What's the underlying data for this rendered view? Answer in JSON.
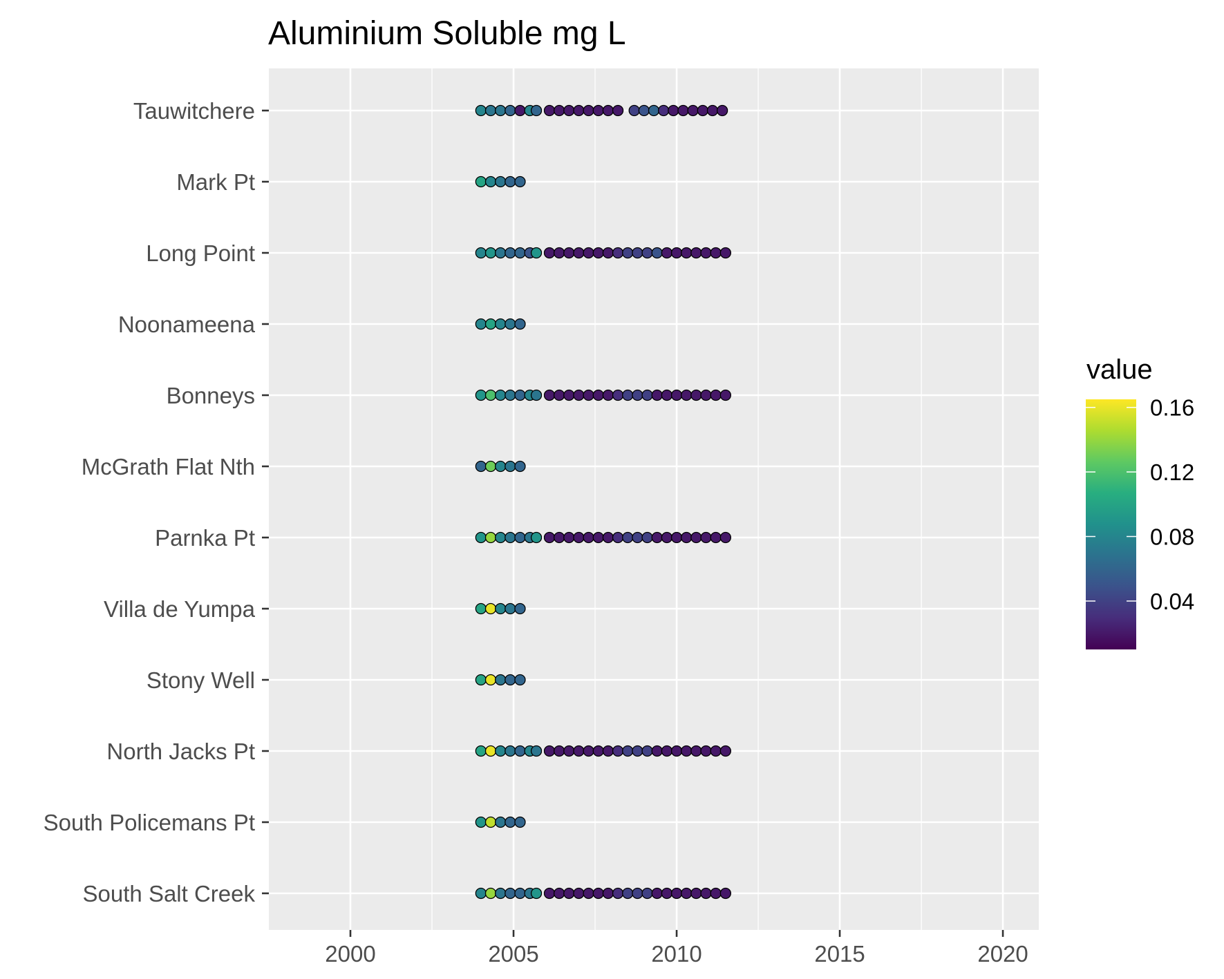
{
  "chart_data": {
    "type": "scatter",
    "title": "Aluminium Soluble mg L",
    "xlabel": "",
    "ylabel": "",
    "xlim": [
      1997.5,
      2021.1
    ],
    "x_ticks": [
      2000,
      2005,
      2010,
      2015,
      2020
    ],
    "grid": true,
    "legend": {
      "title": "value",
      "position": "right",
      "breaks": [
        0.04,
        0.08,
        0.12,
        0.16
      ],
      "range": [
        0.01,
        0.165
      ],
      "colormap": "viridis"
    },
    "sites": [
      "Tauwitchere",
      "Mark Pt",
      "Long Point",
      "Noonameena",
      "Bonneys",
      "McGrath Flat Nth",
      "Parnka Pt",
      "Villa de Yumpa",
      "Stony Well",
      "North Jacks Pt",
      "South Policemans Pt",
      "South Salt Creek"
    ],
    "series": [
      {
        "site": "Tauwitchere",
        "x": [
          2004.0,
          2004.3,
          2004.6,
          2004.9,
          2005.2,
          2005.5,
          2005.7,
          2006.1,
          2006.4,
          2006.7,
          2007.0,
          2007.3,
          2007.6,
          2007.9,
          2008.2,
          2008.7,
          2009.0,
          2009.3,
          2009.6,
          2009.9,
          2010.2,
          2010.5,
          2010.8,
          2011.1,
          2011.4
        ],
        "values": [
          0.08,
          0.07,
          0.07,
          0.06,
          0.02,
          0.08,
          0.06,
          0.02,
          0.02,
          0.02,
          0.02,
          0.02,
          0.02,
          0.02,
          0.02,
          0.04,
          0.05,
          0.06,
          0.03,
          0.02,
          0.02,
          0.02,
          0.02,
          0.02,
          0.02
        ]
      },
      {
        "site": "Mark Pt",
        "x": [
          2004.0,
          2004.3,
          2004.6,
          2004.9,
          2005.2
        ],
        "values": [
          0.1,
          0.08,
          0.07,
          0.06,
          0.06
        ]
      },
      {
        "site": "Long Point",
        "x": [
          2004.0,
          2004.3,
          2004.6,
          2004.9,
          2005.2,
          2005.5,
          2005.7,
          2006.1,
          2006.4,
          2006.7,
          2007.0,
          2007.3,
          2007.6,
          2007.9,
          2008.2,
          2008.5,
          2008.8,
          2009.1,
          2009.4,
          2009.7,
          2010.0,
          2010.3,
          2010.6,
          2010.9,
          2011.2,
          2011.5
        ],
        "values": [
          0.08,
          0.09,
          0.07,
          0.06,
          0.06,
          0.05,
          0.09,
          0.02,
          0.02,
          0.02,
          0.02,
          0.02,
          0.02,
          0.02,
          0.03,
          0.04,
          0.04,
          0.04,
          0.05,
          0.02,
          0.02,
          0.02,
          0.02,
          0.02,
          0.02,
          0.02
        ]
      },
      {
        "site": "Noonameena",
        "x": [
          2004.0,
          2004.3,
          2004.6,
          2004.9,
          2005.2
        ],
        "values": [
          0.08,
          0.1,
          0.08,
          0.07,
          0.06
        ]
      },
      {
        "site": "Bonneys",
        "x": [
          2004.0,
          2004.3,
          2004.6,
          2004.9,
          2005.2,
          2005.5,
          2005.7,
          2006.1,
          2006.4,
          2006.7,
          2007.0,
          2007.3,
          2007.6,
          2007.9,
          2008.2,
          2008.5,
          2008.8,
          2009.1,
          2009.4,
          2009.7,
          2010.0,
          2010.3,
          2010.6,
          2010.9,
          2011.2,
          2011.5
        ],
        "values": [
          0.09,
          0.12,
          0.08,
          0.07,
          0.06,
          0.08,
          0.07,
          0.02,
          0.02,
          0.02,
          0.02,
          0.02,
          0.02,
          0.02,
          0.03,
          0.04,
          0.04,
          0.04,
          0.02,
          0.02,
          0.02,
          0.02,
          0.02,
          0.02,
          0.02,
          0.02
        ]
      },
      {
        "site": "McGrath Flat Nth",
        "x": [
          2004.0,
          2004.3,
          2004.6,
          2004.9,
          2005.2
        ],
        "values": [
          0.06,
          0.13,
          0.08,
          0.07,
          0.06
        ]
      },
      {
        "site": "Parnka Pt",
        "x": [
          2004.0,
          2004.3,
          2004.6,
          2004.9,
          2005.2,
          2005.5,
          2005.7,
          2006.1,
          2006.4,
          2006.7,
          2007.0,
          2007.3,
          2007.6,
          2007.9,
          2008.2,
          2008.5,
          2008.8,
          2009.1,
          2009.4,
          2009.7,
          2010.0,
          2010.3,
          2010.6,
          2010.9,
          2011.2,
          2011.5
        ],
        "values": [
          0.09,
          0.14,
          0.08,
          0.07,
          0.06,
          0.07,
          0.09,
          0.02,
          0.02,
          0.02,
          0.02,
          0.02,
          0.02,
          0.02,
          0.03,
          0.04,
          0.04,
          0.04,
          0.02,
          0.02,
          0.02,
          0.02,
          0.02,
          0.02,
          0.02,
          0.02
        ]
      },
      {
        "site": "Villa de Yumpa",
        "x": [
          2004.0,
          2004.3,
          2004.6,
          2004.9,
          2005.2
        ],
        "values": [
          0.1,
          0.16,
          0.08,
          0.07,
          0.06
        ]
      },
      {
        "site": "Stony Well",
        "x": [
          2004.0,
          2004.3,
          2004.6,
          2004.9,
          2005.2
        ],
        "values": [
          0.1,
          0.16,
          0.07,
          0.06,
          0.06
        ]
      },
      {
        "site": "North Jacks Pt",
        "x": [
          2004.0,
          2004.3,
          2004.6,
          2004.9,
          2005.2,
          2005.5,
          2005.7,
          2006.1,
          2006.4,
          2006.7,
          2007.0,
          2007.3,
          2007.6,
          2007.9,
          2008.2,
          2008.5,
          2008.8,
          2009.1,
          2009.4,
          2009.7,
          2010.0,
          2010.3,
          2010.6,
          2010.9,
          2011.2,
          2011.5
        ],
        "values": [
          0.1,
          0.16,
          0.08,
          0.07,
          0.06,
          0.08,
          0.07,
          0.02,
          0.02,
          0.02,
          0.02,
          0.02,
          0.02,
          0.02,
          0.03,
          0.04,
          0.04,
          0.04,
          0.02,
          0.02,
          0.02,
          0.02,
          0.02,
          0.02,
          0.02,
          0.02
        ]
      },
      {
        "site": "South Policemans Pt",
        "x": [
          2004.0,
          2004.3,
          2004.6,
          2004.9,
          2005.2
        ],
        "values": [
          0.09,
          0.15,
          0.07,
          0.06,
          0.06
        ]
      },
      {
        "site": "South Salt Creek",
        "x": [
          2004.0,
          2004.3,
          2004.6,
          2004.9,
          2005.2,
          2005.5,
          2005.7,
          2006.1,
          2006.4,
          2006.7,
          2007.0,
          2007.3,
          2007.6,
          2007.9,
          2008.2,
          2008.5,
          2008.8,
          2009.1,
          2009.4,
          2009.7,
          2010.0,
          2010.3,
          2010.6,
          2010.9,
          2011.2,
          2011.5
        ],
        "values": [
          0.08,
          0.14,
          0.07,
          0.06,
          0.06,
          0.07,
          0.09,
          0.02,
          0.02,
          0.02,
          0.02,
          0.02,
          0.02,
          0.02,
          0.03,
          0.04,
          0.04,
          0.04,
          0.02,
          0.02,
          0.02,
          0.02,
          0.02,
          0.02,
          0.02,
          0.02
        ]
      }
    ]
  },
  "colors": {
    "panel_bg": "#ebebeb",
    "grid_major": "#ffffff",
    "point_outline": "#000000"
  }
}
